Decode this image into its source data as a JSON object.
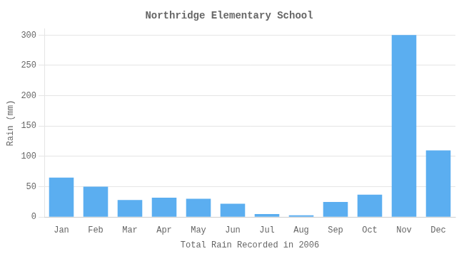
{
  "chart_data": {
    "type": "bar",
    "title": "Northridge Elementary School",
    "xlabel": "Total Rain Recorded in 2006",
    "ylabel": "Rain (mm)",
    "categories": [
      "Jan",
      "Feb",
      "Mar",
      "Apr",
      "May",
      "Jun",
      "Jul",
      "Aug",
      "Sep",
      "Oct",
      "Nov",
      "Dec"
    ],
    "values": [
      65,
      50,
      28,
      32,
      30,
      22,
      5,
      3,
      25,
      37,
      300,
      110
    ],
    "color": "#5BAEF0",
    "ylim": [
      0,
      310
    ],
    "yticks": [
      0,
      50,
      100,
      150,
      200,
      250,
      300
    ],
    "grid": true
  }
}
